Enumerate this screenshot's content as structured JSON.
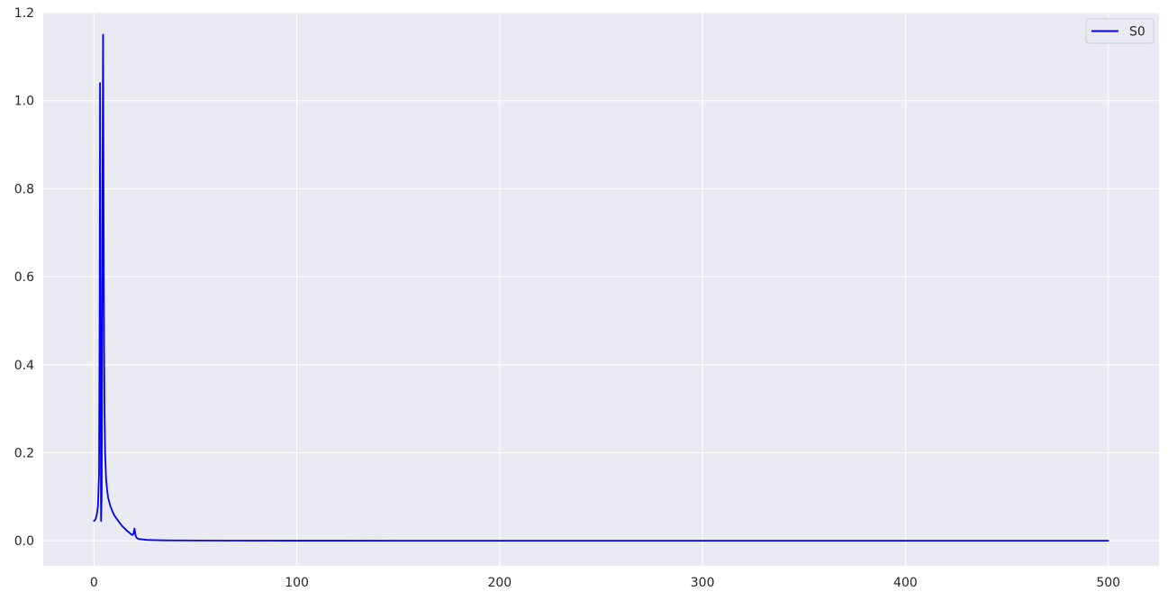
{
  "chart_data": {
    "type": "line",
    "title": "",
    "xlabel": "",
    "ylabel": "",
    "xlim": [
      -25,
      525
    ],
    "ylim": [
      -0.057,
      1.2
    ],
    "x_ticks": [
      0,
      100,
      200,
      300,
      400,
      500
    ],
    "x_tick_labels": [
      "0",
      "100",
      "200",
      "300",
      "400",
      "500"
    ],
    "y_ticks": [
      0.0,
      0.2,
      0.4,
      0.6,
      0.8,
      1.0,
      1.2
    ],
    "y_tick_labels": [
      "0.0",
      "0.2",
      "0.4",
      "0.6",
      "0.8",
      "1.0",
      "1.2"
    ],
    "grid": true,
    "legend": {
      "placement": "top-right",
      "entries": [
        "S0"
      ]
    },
    "colors": {
      "background": "#eaeaf2",
      "grid": "#ffffff",
      "line": "#0000ff"
    },
    "series": [
      {
        "name": "S0",
        "color": "#0000ff",
        "x": [
          0,
          0.5,
          1,
          1.5,
          2,
          2.5,
          2.8,
          3.0,
          3.2,
          3.5,
          3.8,
          4.0,
          4.2,
          4.5,
          4.8,
          5.0,
          5.2,
          5.5,
          6,
          6.5,
          7,
          8,
          9,
          10,
          12,
          14,
          16,
          18,
          19,
          19.5,
          20,
          20.5,
          21,
          22,
          24,
          26,
          30,
          35,
          40,
          50,
          70,
          100,
          150,
          200,
          300,
          400,
          500
        ],
        "y": [
          0.045,
          0.047,
          0.052,
          0.062,
          0.08,
          0.15,
          0.5,
          1.04,
          0.6,
          0.045,
          0.1,
          0.35,
          0.8,
          1.15,
          0.7,
          0.45,
          0.3,
          0.2,
          0.14,
          0.115,
          0.098,
          0.08,
          0.068,
          0.058,
          0.045,
          0.033,
          0.024,
          0.016,
          0.013,
          0.016,
          0.028,
          0.012,
          0.007,
          0.004,
          0.003,
          0.002,
          0.0015,
          0.001,
          0.0008,
          0.0005,
          0.0003,
          0.0002,
          0.0001,
          0.0001,
          0.0001,
          0.0001,
          0.0001
        ]
      }
    ]
  }
}
